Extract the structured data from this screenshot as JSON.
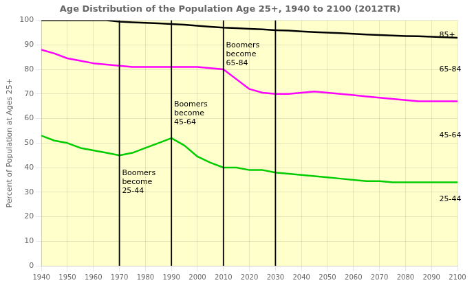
{
  "chart_data": {
    "type": "line",
    "title": "Age Distribution of the Population Age 25+, 1940 to 2100 (2012TR)",
    "y_label": "Percent of Population at Ages 25+",
    "x": [
      1940,
      1945,
      1950,
      1955,
      1960,
      1965,
      1970,
      1975,
      1980,
      1985,
      1990,
      1995,
      2000,
      2005,
      2010,
      2015,
      2020,
      2025,
      2030,
      2035,
      2040,
      2045,
      2050,
      2055,
      2060,
      2065,
      2070,
      2075,
      2080,
      2085,
      2090,
      2095,
      2100
    ],
    "series": [
      {
        "color": "#000000",
        "values": [
          100,
          100,
          100,
          100,
          100,
          100,
          99.5,
          99.2,
          99.0,
          98.8,
          98.5,
          98.2,
          97.8,
          97.4,
          97.0,
          96.8,
          96.5,
          96.3,
          96.0,
          95.8,
          95.5,
          95.2,
          95.0,
          94.8,
          94.5,
          94.2,
          94.0,
          93.8,
          93.6,
          93.5,
          93.3,
          93.1,
          92.9
        ]
      },
      {
        "color": "#FF00FF",
        "values": [
          88,
          86.5,
          84.5,
          83.5,
          82.5,
          82,
          81.5,
          81,
          81,
          81,
          81,
          81,
          81,
          80.5,
          80,
          76,
          72,
          70.5,
          70,
          70,
          70.5,
          71,
          70.5,
          70,
          69.5,
          69,
          68.5,
          68,
          67.5,
          67,
          67,
          67,
          67
        ]
      },
      {
        "color": "#00CC00",
        "values": [
          53,
          51,
          50,
          48,
          47,
          46,
          45,
          46,
          48,
          50,
          52,
          49,
          44.5,
          42,
          40,
          40,
          39,
          39,
          38,
          37.5,
          37,
          36.5,
          36,
          35.5,
          35,
          34.5,
          34.5,
          34,
          34,
          34,
          34,
          34,
          34
        ]
      }
    ],
    "vlines": [
      1970,
      1990,
      2010,
      2030
    ],
    "annotations": [
      {
        "text": "Boomers\nbecome\n25-44",
        "x": 1971,
        "y": 34
      },
      {
        "text": "Boomers\nbecome\n45-64",
        "x": 1991,
        "y": 62
      },
      {
        "text": "Boomers\nbecome\n65-84",
        "x": 2011,
        "y": 86
      },
      {
        "text": "85+",
        "x": 2093,
        "y": 94
      },
      {
        "text": "65-84",
        "x": 2093,
        "y": 80
      },
      {
        "text": "45-64",
        "x": 2093,
        "y": 53
      },
      {
        "text": "25-44",
        "x": 2093,
        "y": 27
      }
    ],
    "xlim": [
      1940,
      2100
    ],
    "ylim": [
      0,
      100
    ],
    "xticks": [
      1940,
      1950,
      1960,
      1970,
      1980,
      1990,
      2000,
      2010,
      2020,
      2030,
      2040,
      2050,
      2060,
      2070,
      2080,
      2090,
      2100
    ],
    "yticks": [
      0,
      10,
      20,
      30,
      40,
      50,
      60,
      70,
      80,
      90,
      100
    ],
    "grid": true
  }
}
